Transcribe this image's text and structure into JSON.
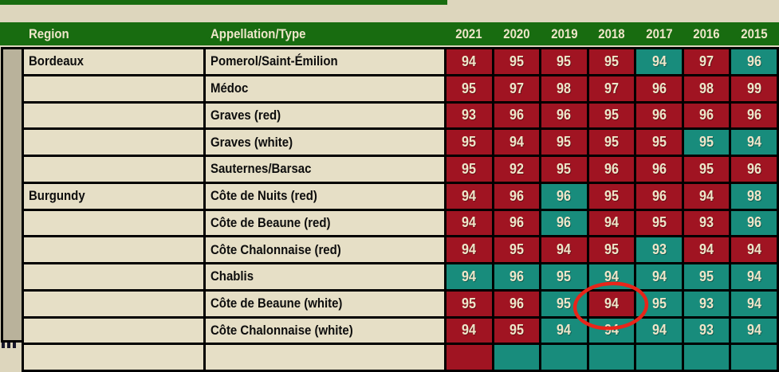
{
  "colors": {
    "header_green": "#186c10",
    "cell_red": "#a01422",
    "cell_teal": "#188c7c",
    "cell_beige": "#e6dfc6",
    "score_text_cream": "#eee6c9",
    "annotation_red": "#e8251a",
    "left_strip_gray": "#b9b29b",
    "page_background": "#ddd6bd"
  },
  "chart_data": {
    "type": "table",
    "columns": [
      "Region",
      "Appellation/Type",
      "2021",
      "2020",
      "2019",
      "2018",
      "2017",
      "2016",
      "2015"
    ],
    "rows": [
      {
        "region": "Bordeaux",
        "appellation": "Pomerol/Saint-Émilion",
        "values": [
          94,
          95,
          95,
          95,
          94,
          97,
          96
        ],
        "colors": [
          "red",
          "red",
          "red",
          "red",
          "teal",
          "red",
          "teal"
        ]
      },
      {
        "region": "",
        "appellation": "Médoc",
        "values": [
          95,
          97,
          98,
          97,
          96,
          98,
          99
        ],
        "colors": [
          "red",
          "red",
          "red",
          "red",
          "red",
          "red",
          "red"
        ]
      },
      {
        "region": "",
        "appellation": "Graves (red)",
        "values": [
          93,
          96,
          96,
          95,
          96,
          96,
          96
        ],
        "colors": [
          "red",
          "red",
          "red",
          "red",
          "red",
          "red",
          "red"
        ]
      },
      {
        "region": "",
        "appellation": "Graves (white)",
        "values": [
          95,
          94,
          95,
          95,
          95,
          95,
          94
        ],
        "colors": [
          "red",
          "red",
          "red",
          "red",
          "red",
          "teal",
          "teal"
        ]
      },
      {
        "region": "",
        "appellation": "Sauternes/Barsac",
        "values": [
          95,
          92,
          95,
          96,
          96,
          95,
          96
        ],
        "colors": [
          "red",
          "red",
          "red",
          "red",
          "red",
          "red",
          "red"
        ]
      },
      {
        "region": "Burgundy",
        "appellation": "Côte de Nuits (red)",
        "values": [
          94,
          96,
          96,
          95,
          96,
          94,
          98
        ],
        "colors": [
          "red",
          "red",
          "teal",
          "red",
          "red",
          "red",
          "teal"
        ]
      },
      {
        "region": "",
        "appellation": "Côte de Beaune (red)",
        "values": [
          94,
          96,
          96,
          94,
          95,
          93,
          96
        ],
        "colors": [
          "red",
          "red",
          "teal",
          "red",
          "red",
          "red",
          "teal"
        ]
      },
      {
        "region": "",
        "appellation": "Côte Chalonnaise (red)",
        "values": [
          94,
          95,
          94,
          95,
          93,
          94,
          94
        ],
        "colors": [
          "red",
          "red",
          "red",
          "red",
          "teal",
          "red",
          "red"
        ]
      },
      {
        "region": "",
        "appellation": "Chablis",
        "values": [
          94,
          96,
          95,
          94,
          94,
          95,
          94
        ],
        "colors": [
          "teal",
          "teal",
          "teal",
          "teal",
          "teal",
          "teal",
          "teal"
        ]
      },
      {
        "region": "",
        "appellation": "Côte de Beaune (white)",
        "values": [
          95,
          96,
          95,
          94,
          95,
          93,
          94
        ],
        "colors": [
          "red",
          "red",
          "teal",
          "red",
          "teal",
          "teal",
          "teal"
        ]
      },
      {
        "region": "",
        "appellation": "Côte Chalonnaise (white)",
        "values": [
          94,
          95,
          94,
          94,
          94,
          93,
          94
        ],
        "colors": [
          "red",
          "red",
          "teal",
          "teal",
          "teal",
          "teal",
          "teal"
        ]
      }
    ],
    "partial_bottom_row": {
      "region": "",
      "appellation": "",
      "colors": [
        "red",
        "teal",
        "teal",
        "teal",
        "teal",
        "teal",
        "teal"
      ]
    }
  },
  "annotation": {
    "shape": "hand-drawn-ellipse",
    "color": "#e8251a",
    "circled_row": "Côte de Beaune (white)",
    "circled_column": "2018",
    "circled_value": 94
  }
}
